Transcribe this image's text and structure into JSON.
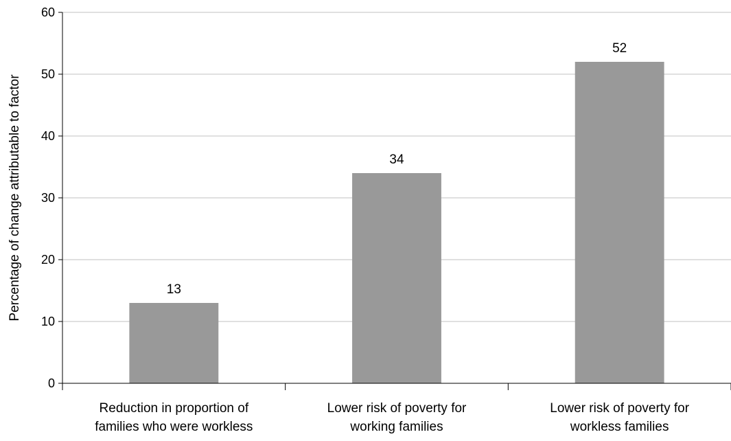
{
  "chart_data": {
    "type": "bar",
    "title": "",
    "xlabel": "",
    "ylabel": "Percentage of change attributable to factor",
    "ylim": [
      0,
      60
    ],
    "yticks": [
      0,
      10,
      20,
      30,
      40,
      50,
      60
    ],
    "grid": true,
    "legend": "none",
    "categories": [
      [
        "Reduction in proportion of",
        "families who were workless"
      ],
      [
        "Lower risk of poverty for",
        "working families"
      ],
      [
        "Lower risk of poverty for",
        "workless families"
      ]
    ],
    "values": [
      13,
      34,
      52
    ],
    "data_labels": [
      "13",
      "34",
      "52"
    ],
    "colors": {
      "bar": "#999999",
      "grid": "#c0c0c0",
      "axis": "#000000"
    }
  }
}
